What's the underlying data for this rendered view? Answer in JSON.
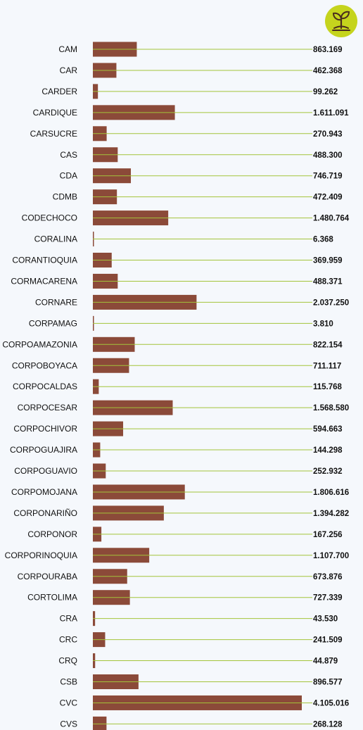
{
  "logo": {
    "icon": "sprout-icon",
    "color": "#c5d41d"
  },
  "colors": {
    "bar": "#8b4a39",
    "line": "#a3c43a",
    "background": "#f5f8fc",
    "text": "#111111"
  },
  "chart_data": {
    "type": "bar",
    "orientation": "horizontal",
    "title": "",
    "xlabel": "",
    "ylabel": "",
    "categories": [
      "CAM",
      "CAR",
      "CARDER",
      "CARDIQUE",
      "CARSUCRE",
      "CAS",
      "CDA",
      "CDMB",
      "CODECHOCO",
      "CORALINA",
      "CORANTIOQUIA",
      "CORMACARENA",
      "CORNARE",
      "CORPAMAG",
      "CORPOAMAZONIA",
      "CORPOBOYACA",
      "CORPOCALDAS",
      "CORPOCESAR",
      "CORPOCHIVOR",
      "CORPOGUAJIRA",
      "CORPOGUAVIO",
      "CORPOMOJANA",
      "CORPONARIÑO",
      "CORPONOR",
      "CORPORINOQUIA",
      "CORPOURABA",
      "CORTOLIMA",
      "CRA",
      "CRC",
      "CRQ",
      "CSB",
      "CVC",
      "CVS"
    ],
    "values": [
      863169,
      462368,
      99262,
      1611091,
      270943,
      488300,
      746719,
      472409,
      1480764,
      6368,
      369959,
      488371,
      2037250,
      3810,
      822154,
      711117,
      115768,
      1568580,
      594663,
      144298,
      252932,
      1806616,
      1394282,
      167256,
      1107700,
      673876,
      727339,
      43530,
      241509,
      44879,
      896577,
      4105016,
      268128
    ],
    "value_labels": [
      "863.169",
      "462.368",
      "99.262",
      "1.611.091",
      "270.943",
      "488.300",
      "746.719",
      "472.409",
      "1.480.764",
      "6.368",
      "369.959",
      "488.371",
      "2.037.250",
      "3.810",
      "822.154",
      "711.117",
      "115.768",
      "1.568.580",
      "594.663",
      "144.298",
      "252.932",
      "1.806.616",
      "1.394.282",
      "167.256",
      "1.107.700",
      "673.876",
      "727.339",
      "43.530",
      "241.509",
      "44.879",
      "896.577",
      "4.105.016",
      "268.128"
    ],
    "xlim": [
      0,
      4105016
    ],
    "grid": false,
    "legend": "none"
  }
}
